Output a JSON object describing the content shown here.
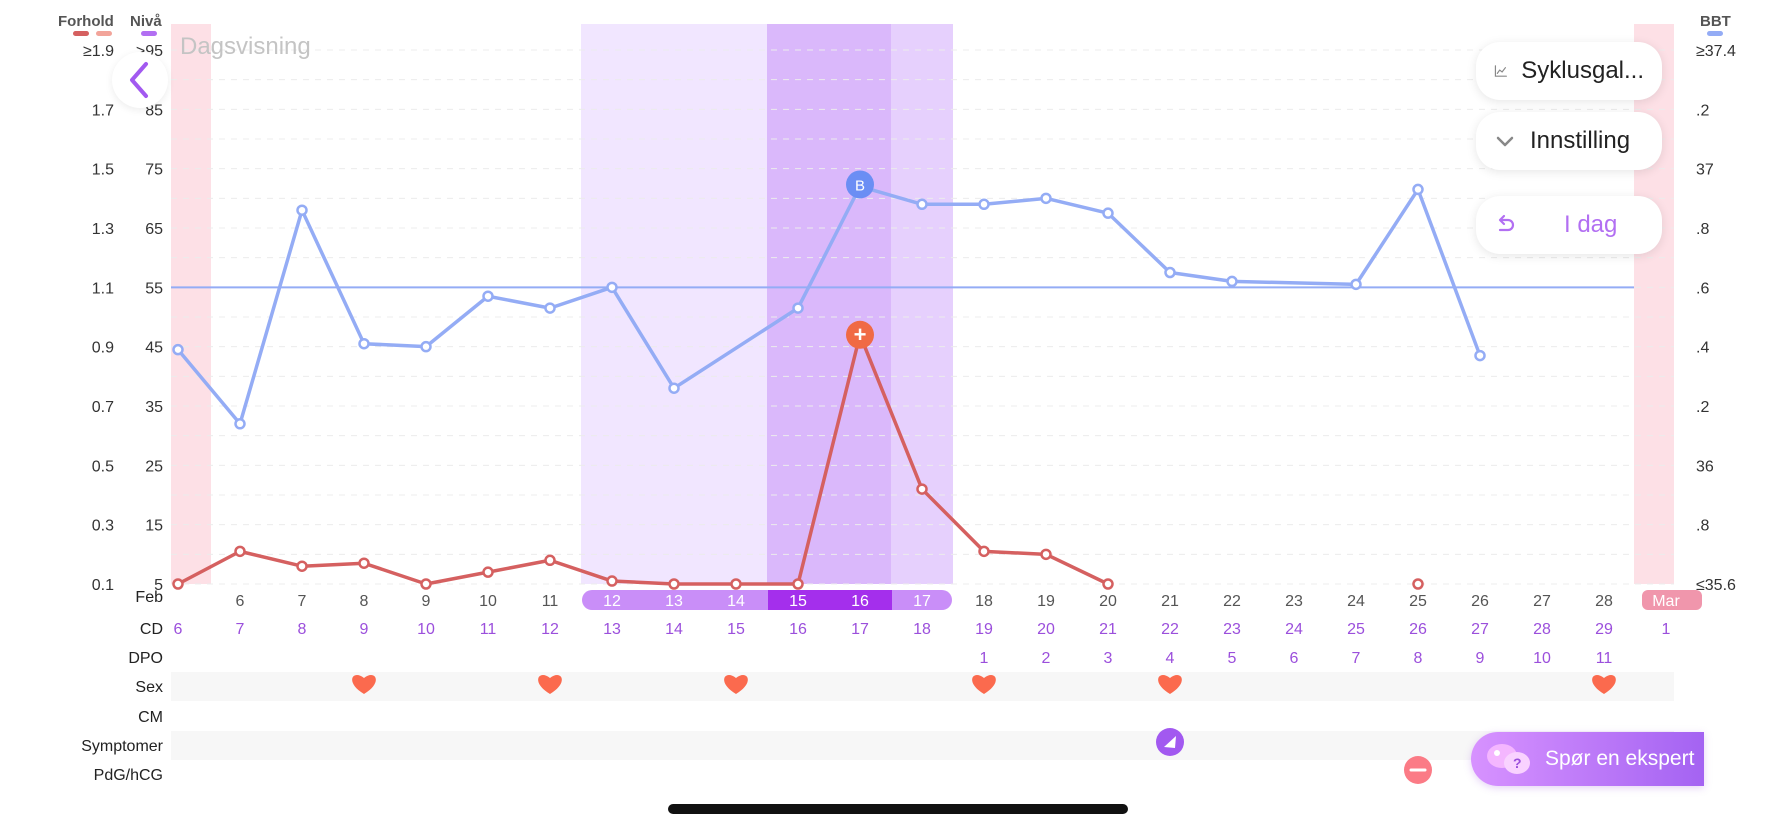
{
  "header": {
    "left_label_1": "Forhold",
    "left_label_2": "Nivå",
    "right_label": "BBT",
    "view_title": "Dagsvisning"
  },
  "colors": {
    "bbt": "#94acf5",
    "ratio": "#d56060",
    "fertile_light": "#f1e6ff",
    "fertile_mid": "#e6d0fd",
    "fertile_dark": "#dab8fb",
    "period": "#fde0e6",
    "cd_text": "#9b4fdc"
  },
  "buttons": {
    "cycle_gallery": "Syklusgal...",
    "settings": "Innstilling",
    "today": "I dag",
    "expert": "Spør en ekspert"
  },
  "left_axis": {
    "ratio_ticks": [
      "≥1.9",
      "1.7",
      "1.5",
      "1.3",
      "1.1",
      "0.9",
      "0.7",
      "0.5",
      "0.3",
      "0.1"
    ],
    "level_ticks": [
      ">95",
      "85",
      "75",
      "65",
      "55",
      "45",
      "35",
      "25",
      "15",
      "5"
    ]
  },
  "right_axis": {
    "bbt_ticks": [
      "≥37.4",
      ".2",
      "37",
      ".8",
      ".6",
      ".4",
      ".2",
      "36",
      ".8",
      "≤35.6"
    ]
  },
  "rows": {
    "labels": [
      "CD",
      "DPO",
      "Sex",
      "CM",
      "Symptomer",
      "PdG/hCG"
    ]
  },
  "chart_data": {
    "type": "line",
    "month_start": "Feb",
    "month_end": "Mar",
    "dates": [
      "",
      "6",
      "7",
      "8",
      "9",
      "10",
      "11",
      "12",
      "13",
      "14",
      "15",
      "16",
      "17",
      "18",
      "19",
      "20",
      "21",
      "22",
      "23",
      "24",
      "25",
      "26",
      "27",
      "28",
      "1"
    ],
    "cycle_days": [
      "6",
      "7",
      "8",
      "9",
      "10",
      "11",
      "12",
      "13",
      "14",
      "15",
      "16",
      "17",
      "18",
      "19",
      "20",
      "21",
      "22",
      "23",
      "24",
      "25",
      "26",
      "27",
      "28",
      "29",
      "1"
    ],
    "dpo": [
      "",
      "",
      "",
      "",
      "",
      "",
      "",
      "",
      "",
      "",
      "",
      "",
      "",
      "1",
      "2",
      "3",
      "4",
      "5",
      "6",
      "7",
      "8",
      "9",
      "10",
      "11",
      ""
    ],
    "fertile_dates": [
      "12",
      "13",
      "14",
      "15",
      "16",
      "17"
    ],
    "peak_dates": [
      "15",
      "16"
    ],
    "period_dates": [
      "5",
      "1"
    ],
    "coverline_bbt": 36.6,
    "bbt": [
      36.39,
      36.14,
      36.86,
      36.41,
      36.4,
      36.57,
      36.53,
      36.6,
      36.26,
      null,
      36.53,
      36.94,
      36.88,
      36.88,
      36.9,
      36.85,
      36.65,
      36.62,
      null,
      36.61,
      36.93,
      36.37,
      null,
      null,
      null
    ],
    "bbt_marker": {
      "label": "B",
      "index": 11
    },
    "ratio": [
      0.1,
      0.21,
      0.16,
      0.17,
      0.1,
      0.14,
      0.18,
      0.11,
      0.1,
      0.1,
      0.1,
      0.94,
      0.42,
      0.21,
      0.2,
      0.1,
      null,
      null,
      null,
      null,
      0.1,
      null,
      null,
      null,
      null
    ],
    "ratio_marker": {
      "label": "+",
      "index": 11
    },
    "sex_days": [
      "8",
      "11",
      "14",
      "18",
      "21",
      "28"
    ],
    "symptom_days": [
      "21"
    ],
    "pdg_days": [
      "25"
    ],
    "left_ylim": [
      0.1,
      1.9
    ],
    "right_ylim": [
      35.6,
      37.4
    ]
  }
}
